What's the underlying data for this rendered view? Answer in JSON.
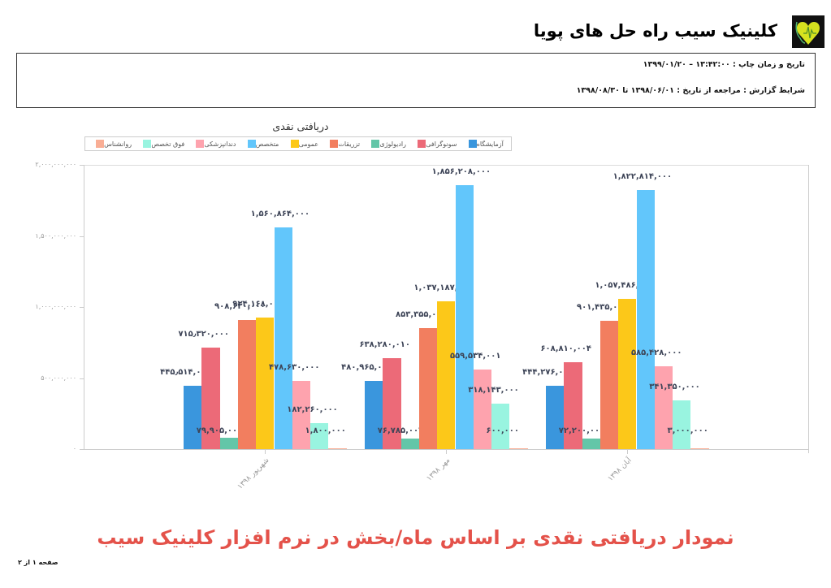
{
  "header": {
    "clinic_name": "کلینیک سیب راه حل های پویا",
    "logo": "heart-stethoscope-logo-icon"
  },
  "info": {
    "print_datetime": "تاریخ و زمان چاپ :  ۱۳:۴۲:۰۰  –  ۱۳۹۹/۰۱/۲۰",
    "report_conditions": "شرایط گزارش :  مراجعه از تاریخ : ۱۳۹۸/۰۶/۰۱  تا ۱۳۹۸/۰۸/۳۰"
  },
  "legend": [
    {
      "label": "آزمایشگاه",
      "color": "#3a96dd"
    },
    {
      "label": "سونوگرافی",
      "color": "#ec6a78"
    },
    {
      "label": "رادیولوژی",
      "color": "#63c6a8"
    },
    {
      "label": "تزریقات",
      "color": "#f27e5f"
    },
    {
      "label": "عمومی",
      "color": "#fcc819"
    },
    {
      "label": "متخصص",
      "color": "#62c6fb"
    },
    {
      "label": "دندانپزشکی",
      "color": "#fea3ae"
    },
    {
      "label": "فوق تخصص",
      "color": "#99f4e0"
    },
    {
      "label": "روانشناس",
      "color": "#f9ae95"
    }
  ],
  "yticks": [
    "۲,۰۰۰,۰۰۰,۰۰۰",
    "۱,۵۰۰,۰۰۰,۰۰۰",
    "۱,۰۰۰,۰۰۰,۰۰۰",
    "۵۰۰,۰۰۰,۰۰۰",
    "۰"
  ],
  "chart_data": {
    "type": "bar",
    "title": "دریافتی نقدی",
    "xlabel": "",
    "ylabel": "",
    "ylim": [
      0,
      2000000000
    ],
    "legend_position": "top",
    "grid": false,
    "categories": [
      "شهریور ۱۳۹۸",
      "مهر ۱۳۹۸",
      "آبان ۱۳۹۸"
    ],
    "series": [
      {
        "name": "آزمایشگاه",
        "values": [
          445514000,
          480965000,
          444276001
        ],
        "labels": [
          "۴۴۵٫۵۱۴,۰۰۰",
          "۴۸۰,۹۶۵,۰۰۰",
          "۴۴۴,۲۷۶,۰۰۱"
        ]
      },
      {
        "name": "سونوگرافی",
        "values": [
          715320000,
          638280010,
          608810004
        ],
        "labels": [
          "۷۱۵٫۳۲۰,۰۰۰",
          "۶۳۸,۲۸۰,۰۱۰",
          "۶۰۸,۸۱۰,۰۰۴"
        ]
      },
      {
        "name": "رادیولوژی",
        "values": [
          79905000,
          76785004,
          72200001
        ],
        "labels": [
          "۷۹,۹۰۵,۰۰۰",
          "۷۶,۷۸۵,۰۰۴",
          "۷۲,۲۰۰,۰۰۱"
        ]
      },
      {
        "name": "تزریقات",
        "values": [
          908630000,
          853355000,
          901435000
        ],
        "labels": [
          "۹۰۸,۶۳۰,۰۰۰",
          "۸۵۳,۳۵۵,۰۰۰",
          "۹۰۱,۴۳۵,۰۰۰"
        ]
      },
      {
        "name": "عمومی",
        "values": [
          924168000,
          1037187000,
          1057486000
        ],
        "labels": [
          "۹۲۴,۱۶۸,۰۰۰",
          "۱,۰۳۷,۱۸۷,۰۰۰",
          "۱,۰۵۷,۴۸۶,۰۰۰"
        ]
      },
      {
        "name": "متخصص",
        "values": [
          1560864000,
          1856208000,
          1822814000
        ],
        "labels": [
          "۱,۵۶۰,۸۶۴,۰۰۰",
          "۱,۸۵۶,۲۰۸,۰۰۰",
          "۱,۸۲۲,۸۱۴,۰۰۰"
        ]
      },
      {
        "name": "دندانپزشکی",
        "values": [
          478630000,
          559534001,
          585428000
        ],
        "labels": [
          "۴۷۸,۶۳۰,۰۰۰",
          "۵۵۹,۵۳۴,۰۰۱",
          "۵۸۵,۴۲۸,۰۰۰"
        ]
      },
      {
        "name": "فوق تخصص",
        "values": [
          182260000,
          318143000,
          341350000
        ],
        "labels": [
          "۱۸۲,۲۶۰,۰۰۰",
          "۳۱۸,۱۴۳,۰۰۰",
          "۳۴۱,۳۵۰,۰۰۰"
        ]
      },
      {
        "name": "روانشناس",
        "values": [
          1800000,
          600000,
          3000000
        ],
        "labels": [
          "۱,۸۰۰,۰۰۰",
          "۶۰۰,۰۰۰",
          "۳,۰۰۰,۰۰۰"
        ]
      }
    ]
  },
  "caption": "نمودار دریافتی نقدی بر اساس ماه/بخش در نرم افزار کلینیک سیب",
  "footer": {
    "page": "صفحه ۱ از ۲"
  }
}
